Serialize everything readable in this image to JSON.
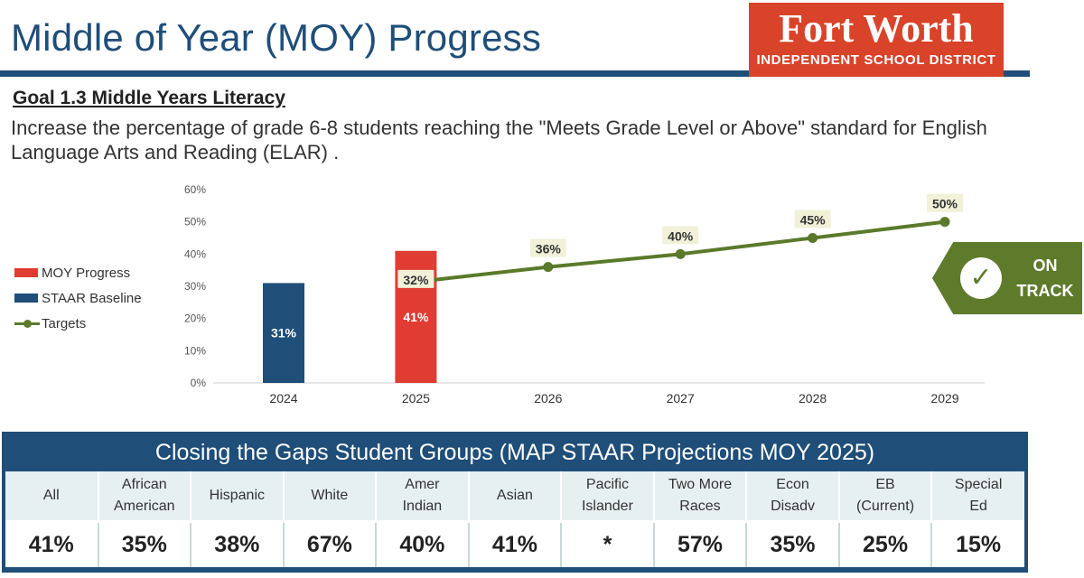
{
  "header": {
    "title": "Middle of Year (MOY) Progress",
    "logo_name": "Fort Worth",
    "logo_sub": "INDEPENDENT SCHOOL DISTRICT",
    "brand_color": "#d8432a",
    "title_color": "#1f4e79"
  },
  "goal": {
    "heading": "Goal 1.3 Middle Years Literacy",
    "description": "Increase the percentage of grade 6-8 students reaching the \"Meets Grade Level or Above\" standard for English Language Arts and Reading (ELAR) ."
  },
  "chart_data": {
    "type": "bar",
    "categories": [
      "2024",
      "2025",
      "2026",
      "2027",
      "2028",
      "2029"
    ],
    "ylim": [
      0,
      60
    ],
    "yticks": [
      "0%",
      "10%",
      "20%",
      "30%",
      "40%",
      "50%",
      "60%"
    ],
    "grid": false,
    "legend_position": "left",
    "series": [
      {
        "name": "MOY Progress",
        "kind": "bar",
        "color": "#e03c31",
        "values": [
          null,
          41,
          null,
          null,
          null,
          null
        ],
        "labels": [
          null,
          "41%",
          null,
          null,
          null,
          null
        ]
      },
      {
        "name": "STAAR Baseline",
        "kind": "bar",
        "color": "#1f4e79",
        "values": [
          31,
          null,
          null,
          null,
          null,
          null
        ],
        "labels": [
          "31%",
          null,
          null,
          null,
          null,
          null
        ]
      },
      {
        "name": "Targets",
        "kind": "line",
        "color": "#5a7a2a",
        "values": [
          null,
          32,
          36,
          40,
          45,
          50
        ],
        "labels": [
          null,
          "32%",
          "36%",
          "40%",
          "45%",
          "50%"
        ]
      }
    ]
  },
  "status_badge": {
    "line1": "ON",
    "line2": "TRACK",
    "icon": "check-icon",
    "color": "#5e7b2c"
  },
  "gaps": {
    "title": "Closing the Gaps Student Groups (MAP STAAR Projections MOY 2025)",
    "groups": [
      {
        "l1": "All",
        "l2": "",
        "value": "41%"
      },
      {
        "l1": "African",
        "l2": "American",
        "value": "35%"
      },
      {
        "l1": "Hispanic",
        "l2": "",
        "value": "38%"
      },
      {
        "l1": "White",
        "l2": "",
        "value": "67%"
      },
      {
        "l1": "Amer",
        "l2": "Indian",
        "value": "40%"
      },
      {
        "l1": "Asian",
        "l2": "",
        "value": "41%"
      },
      {
        "l1": "Pacific",
        "l2": "Islander",
        "value": "*"
      },
      {
        "l1": "Two More",
        "l2": "Races",
        "value": "57%"
      },
      {
        "l1": "Econ",
        "l2": "Disadv",
        "value": "35%"
      },
      {
        "l1": "EB",
        "l2": "(Current)",
        "value": "25%"
      },
      {
        "l1": "Special",
        "l2": "Ed",
        "value": "15%"
      }
    ]
  }
}
